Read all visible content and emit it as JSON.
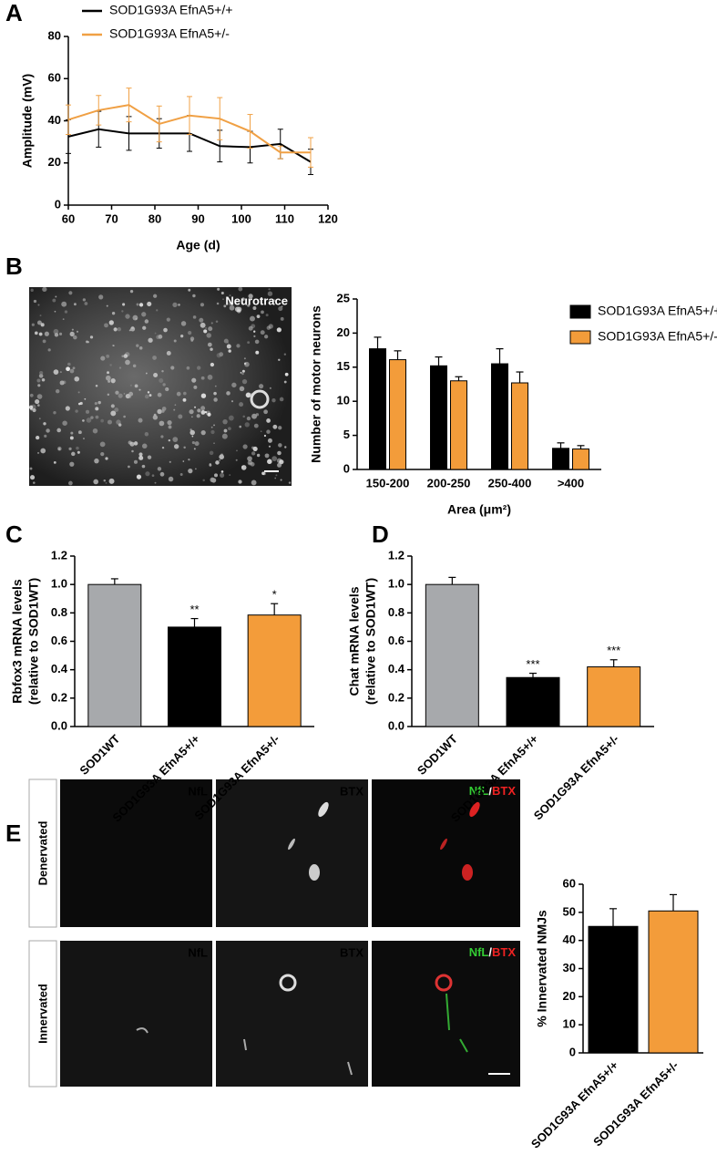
{
  "panel_labels": [
    "A",
    "B",
    "C",
    "D",
    "E"
  ],
  "images": {
    "neurotrace": "Neurotrace",
    "rows": [
      "Denervated",
      "Innervated"
    ],
    "channels": [
      "NfL",
      "BTX",
      [
        "NfL",
        "/",
        "BTX"
      ]
    ]
  },
  "chart_data": [
    {
      "type": "line",
      "xlabel": "Age (d)",
      "ylabel": "Amplitude (mV)",
      "x": [
        60,
        67,
        74,
        81,
        88,
        95,
        102,
        109,
        116
      ],
      "series": [
        {
          "name": "SOD1G93A EfnA5+/+",
          "color": "#000000",
          "values": [
            32.5,
            36,
            34,
            34,
            34,
            28,
            27.5,
            29,
            20.5
          ],
          "errors": [
            8,
            8.5,
            8,
            7,
            8.5,
            7.5,
            7.5,
            7,
            6
          ]
        },
        {
          "name": "SOD1G93A EfnA5+/-",
          "color": "#f0a044",
          "values": [
            40.5,
            45,
            47.5,
            38.5,
            42.5,
            41,
            35,
            25,
            25
          ],
          "errors": [
            7,
            7,
            8,
            8.5,
            9,
            10,
            8,
            3,
            7
          ]
        }
      ],
      "xlim": [
        60,
        120
      ],
      "xticks": [
        60,
        70,
        80,
        90,
        100,
        110,
        120
      ],
      "ylim": [
        0,
        80
      ],
      "yticks": [
        0,
        20,
        40,
        60,
        80
      ]
    },
    {
      "type": "bar",
      "xlabel": "Area (μm²)",
      "ylabel": "Number of motor neurons",
      "categories": [
        "150-200",
        "200-250",
        "250-400",
        ">400"
      ],
      "series": [
        {
          "name": "SOD1G93A EfnA5+/+",
          "color": "#000000",
          "values": [
            17.7,
            15.2,
            15.5,
            3.1
          ],
          "errors": [
            1.7,
            1.3,
            2.2,
            0.8
          ]
        },
        {
          "name": "SOD1G93A EfnA5+/-",
          "color": "#f39c3a",
          "values": [
            16.1,
            13.0,
            12.7,
            3.0
          ],
          "errors": [
            1.3,
            0.6,
            1.6,
            0.5
          ]
        }
      ],
      "ylim": [
        0,
        25
      ],
      "yticks": [
        0,
        5,
        10,
        15,
        20,
        25
      ]
    },
    {
      "type": "bar",
      "ylabel": [
        "Rbfox3 mRNA levels",
        "(relative to SOD1WT)"
      ],
      "categories": [
        "SOD1WT",
        "SOD1G93A EfnA5+/+",
        "SOD1G93A EfnA5+/-"
      ],
      "values": [
        1.0,
        0.7,
        0.785
      ],
      "errors": [
        0.04,
        0.06,
        0.08
      ],
      "colors": [
        "#a7a9ac",
        "#000000",
        "#f39c3a"
      ],
      "significance": [
        null,
        "**",
        "*"
      ],
      "ylim": [
        0,
        1.2
      ],
      "yticks": [
        {
          "value": 0,
          "label": "0.0"
        },
        0.2,
        0.4,
        0.6,
        0.8,
        {
          "value": 1,
          "label": "1.0"
        },
        1.2
      ]
    },
    {
      "type": "bar",
      "ylabel": [
        "Chat mRNA levels",
        "(relative to SOD1WT)"
      ],
      "categories": [
        "SOD1WT",
        "SOD1G93A EfnA5+/+",
        "SOD1G93A EfnA5+/-"
      ],
      "values": [
        1.0,
        0.345,
        0.42
      ],
      "errors": [
        0.05,
        0.03,
        0.05
      ],
      "colors": [
        "#a7a9ac",
        "#000000",
        "#f39c3a"
      ],
      "significance": [
        null,
        "***",
        "***"
      ],
      "ylim": [
        0,
        1.2
      ],
      "yticks": [
        {
          "value": 0,
          "label": "0.0"
        },
        0.2,
        0.4,
        0.6,
        0.8,
        {
          "value": 1,
          "label": "1.0"
        },
        1.2
      ]
    },
    {
      "type": "bar",
      "ylabel": "% Innervated NMJs",
      "categories": [
        "SOD1G93A EfnA5+/+",
        "SOD1G93A EfnA5+/-"
      ],
      "values": [
        45,
        50.5
      ],
      "errors": [
        6.3,
        5.8
      ],
      "colors": [
        "#000000",
        "#f39c3a"
      ],
      "ylim": [
        0,
        60
      ],
      "yticks": [
        0,
        10,
        20,
        30,
        40,
        50,
        60
      ]
    }
  ]
}
